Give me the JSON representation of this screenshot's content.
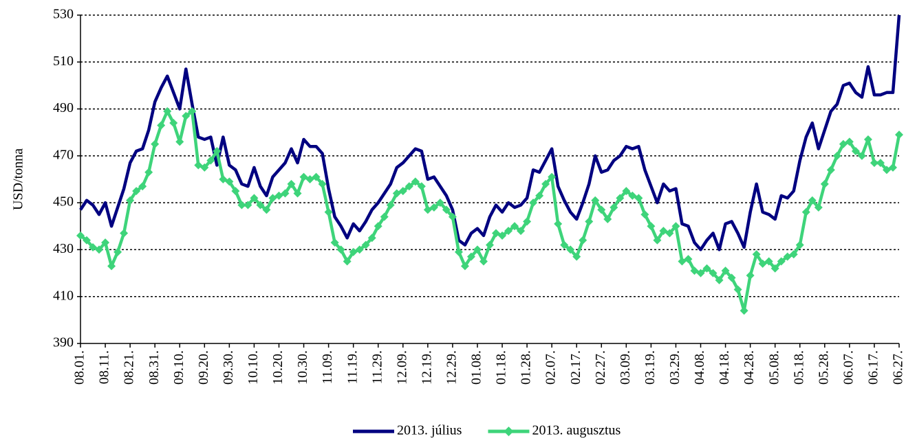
{
  "chart_data": {
    "type": "line",
    "y_label": "USD/tonna",
    "categories": [
      "08.01.",
      null,
      null,
      null,
      "08.11.",
      null,
      null,
      null,
      "08.21.",
      null,
      null,
      null,
      "08.31.",
      null,
      null,
      null,
      "09.10.",
      null,
      null,
      null,
      "09.20.",
      null,
      null,
      null,
      "09.30.",
      null,
      null,
      null,
      "10.10.",
      null,
      null,
      null,
      "10.20.",
      null,
      null,
      null,
      "10.30.",
      null,
      null,
      null,
      "11.09.",
      null,
      null,
      null,
      "11.19.",
      null,
      null,
      null,
      "11.29.",
      null,
      null,
      null,
      "12.09.",
      null,
      null,
      null,
      "12.19.",
      null,
      null,
      null,
      "12.29.",
      null,
      null,
      null,
      "01.08.",
      null,
      null,
      null,
      "01.18.",
      null,
      null,
      null,
      "01.28.",
      null,
      null,
      null,
      "02.07.",
      null,
      null,
      null,
      "02.17.",
      null,
      null,
      null,
      "02.27.",
      null,
      null,
      null,
      "03.09.",
      null,
      null,
      null,
      "03.19.",
      null,
      null,
      null,
      "03.29.",
      null,
      null,
      null,
      "04.08.",
      null,
      null,
      null,
      "04.18.",
      null,
      null,
      null,
      "04.28.",
      null,
      null,
      null,
      "05.08.",
      null,
      null,
      null,
      "05.18.",
      null,
      null,
      null,
      "05.28.",
      null,
      null,
      null,
      "06.07.",
      null,
      null,
      null,
      "06.17.",
      null,
      null,
      null,
      "06.27."
    ],
    "series": [
      {
        "name": "2013. július",
        "color": "#000080",
        "marker": false,
        "values": [
          447,
          451,
          449,
          445,
          450,
          440,
          448,
          456,
          467,
          472,
          473,
          481,
          493,
          499,
          504,
          497,
          490,
          507,
          492,
          478,
          477,
          478,
          466,
          478,
          466,
          464,
          458,
          457,
          465,
          457,
          453,
          461,
          464,
          467,
          473,
          467,
          477,
          474,
          474,
          471,
          456,
          444,
          440,
          435,
          441,
          438,
          442,
          447,
          450,
          454,
          458,
          465,
          467,
          470,
          473,
          472,
          460,
          461,
          457,
          453,
          447,
          434,
          432,
          437,
          439,
          436,
          444,
          449,
          446,
          450,
          448,
          449,
          452,
          464,
          463,
          468,
          473,
          457,
          451,
          446,
          443,
          450,
          458,
          470,
          463,
          464,
          468,
          470,
          474,
          473,
          474,
          464,
          457,
          450,
          458,
          455,
          456,
          441,
          440,
          433,
          430,
          434,
          437,
          430,
          441,
          442,
          437,
          431,
          446,
          458,
          446,
          445,
          443,
          453,
          452,
          455,
          468,
          478,
          484,
          473,
          481,
          489,
          492,
          500,
          501,
          497,
          495,
          508,
          496,
          496,
          497,
          497,
          530
        ]
      },
      {
        "name": "2013. augusztus",
        "color": "#3ed47a",
        "marker": true,
        "values": [
          436,
          434,
          431,
          430,
          433,
          423,
          429,
          437,
          451,
          455,
          457,
          463,
          475,
          483,
          489,
          484,
          476,
          487,
          489,
          466,
          465,
          468,
          472,
          460,
          459,
          455,
          449,
          449,
          452,
          449,
          447,
          452,
          453,
          454,
          458,
          454,
          461,
          460,
          461,
          458,
          446,
          433,
          430,
          425,
          429,
          430,
          432,
          435,
          440,
          444,
          449,
          454,
          455,
          457,
          459,
          457,
          447,
          448,
          450,
          447,
          444,
          429,
          423,
          427,
          430,
          425,
          432,
          437,
          436,
          438,
          440,
          438,
          442,
          450,
          453,
          458,
          461,
          441,
          432,
          430,
          427,
          434,
          442,
          451,
          447,
          443,
          448,
          452,
          455,
          453,
          452,
          445,
          440,
          434,
          438,
          437,
          440,
          425,
          426,
          421,
          420,
          422,
          420,
          417,
          421,
          418,
          413,
          404,
          419,
          428,
          424,
          425,
          422,
          425,
          427,
          428,
          432,
          446,
          451,
          448,
          458,
          464,
          470,
          475,
          476,
          472,
          470,
          477,
          467,
          467,
          464,
          465,
          479
        ]
      }
    ],
    "ylim": [
      390,
      530
    ],
    "yticks": [
      390,
      410,
      430,
      450,
      470,
      490,
      510,
      530
    ],
    "grid": true
  }
}
